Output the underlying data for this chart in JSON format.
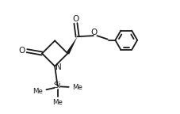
{
  "background_color": "#ffffff",
  "line_color": "#1a1a1a",
  "line_width": 1.3,
  "figsize": [
    2.28,
    1.44
  ],
  "dpi": 100,
  "xlim": [
    0,
    10
  ],
  "ylim": [
    0,
    6.3
  ]
}
